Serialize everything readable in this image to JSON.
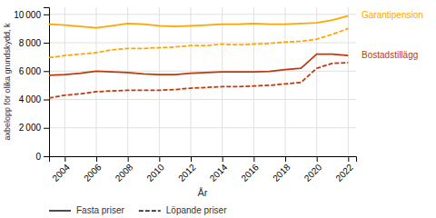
{
  "chart_data": {
    "type": "line",
    "x_label": "År",
    "y_label": "axbelopp för olika grundskydd, k",
    "x": [
      2003,
      2004,
      2005,
      2006,
      2007,
      2008,
      2009,
      2010,
      2011,
      2012,
      2013,
      2014,
      2015,
      2016,
      2017,
      2018,
      2019,
      2020,
      2021,
      2022
    ],
    "series": [
      {
        "color": "#FFA500",
        "line_style": "solid",
        "values": [
          9300,
          9250,
          9150,
          9050,
          9200,
          9350,
          9300,
          9200,
          9150,
          9200,
          9250,
          9300,
          9300,
          9350,
          9300,
          9300,
          9350,
          9400,
          9600,
          9900
        ]
      },
      {
        "color": "#FFA500",
        "line_style": "dashed",
        "values": [
          6950,
          7100,
          7200,
          7300,
          7500,
          7600,
          7600,
          7650,
          7700,
          7800,
          7800,
          7900,
          7850,
          7900,
          7950,
          8050,
          8100,
          8250,
          8600,
          9000
        ]
      },
      {
        "color": "#C0390B",
        "line_style": "solid",
        "values": [
          5700,
          5750,
          5850,
          6000,
          5950,
          5900,
          5800,
          5750,
          5750,
          5850,
          5900,
          5950,
          5950,
          5950,
          5980,
          6100,
          6200,
          7200,
          7200,
          7100
        ]
      },
      {
        "color": "#C0390B",
        "line_style": "dashed",
        "values": [
          4100,
          4300,
          4400,
          4550,
          4600,
          4650,
          4650,
          4650,
          4700,
          4800,
          4850,
          4900,
          4900,
          4950,
          5000,
          5100,
          5200,
          6200,
          6550,
          6600
        ]
      }
    ],
    "annotations": [
      {
        "text": "Garantipension",
        "y": 9900,
        "color": "#FFA500"
      },
      {
        "text": "Bostadstillägg",
        "y": 7100,
        "color": "#C0390B"
      }
    ],
    "legend": "bottom",
    "legend_entries": [
      {
        "name": "Fasta priser",
        "line_style": "solid"
      },
      {
        "name": "Löpande priser",
        "line_style": "dashed"
      }
    ],
    "xlim": [
      2003,
      2022.5
    ],
    "xticks": [
      2004,
      2006,
      2008,
      2010,
      2012,
      2014,
      2016,
      2018,
      2020,
      2022
    ],
    "ylim": [
      0,
      10500
    ],
    "yticks": [
      0,
      {
        "value": 2000,
        "label": "2 000"
      },
      {
        "value": 4000,
        "label": "4 000"
      },
      {
        "value": 6000,
        "label": "6 000"
      },
      {
        "value": 8000,
        "label": "8 000"
      },
      {
        "value": 10000,
        "label": "10 000"
      }
    ],
    "grid": true
  }
}
